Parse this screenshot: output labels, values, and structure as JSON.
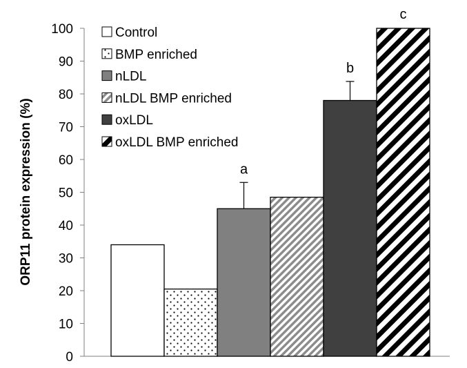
{
  "chart_data": {
    "type": "bar",
    "title": "",
    "xlabel": "",
    "ylabel": "ORP11 protein expression (%)",
    "ylim": [
      0,
      100
    ],
    "yticks": [
      0,
      10,
      20,
      30,
      40,
      50,
      60,
      70,
      80,
      90,
      100
    ],
    "grid": false,
    "legend_position": "top-left",
    "series": [
      {
        "name": "Control",
        "value": 34,
        "error": null,
        "annotation": "",
        "fill": "#ffffff",
        "pattern": "none"
      },
      {
        "name": "BMP enriched",
        "value": 20.5,
        "error": null,
        "annotation": "",
        "fill": "#ffffff",
        "pattern": "dots"
      },
      {
        "name": "nLDL",
        "value": 45,
        "error": 8,
        "annotation": "a",
        "fill": "#808080",
        "pattern": "none"
      },
      {
        "name": "nLDL BMP enriched",
        "value": 48.5,
        "error": null,
        "annotation": "",
        "fill": "#bfbfbf",
        "pattern": "light-diagonal"
      },
      {
        "name": "oxLDL",
        "value": 78,
        "error": 5.8,
        "annotation": "b",
        "fill": "#404040",
        "pattern": "none"
      },
      {
        "name": "oxLDL BMP enriched",
        "value": 100,
        "error": null,
        "annotation": "c",
        "fill": "#000000",
        "pattern": "wide-diagonal"
      }
    ]
  }
}
